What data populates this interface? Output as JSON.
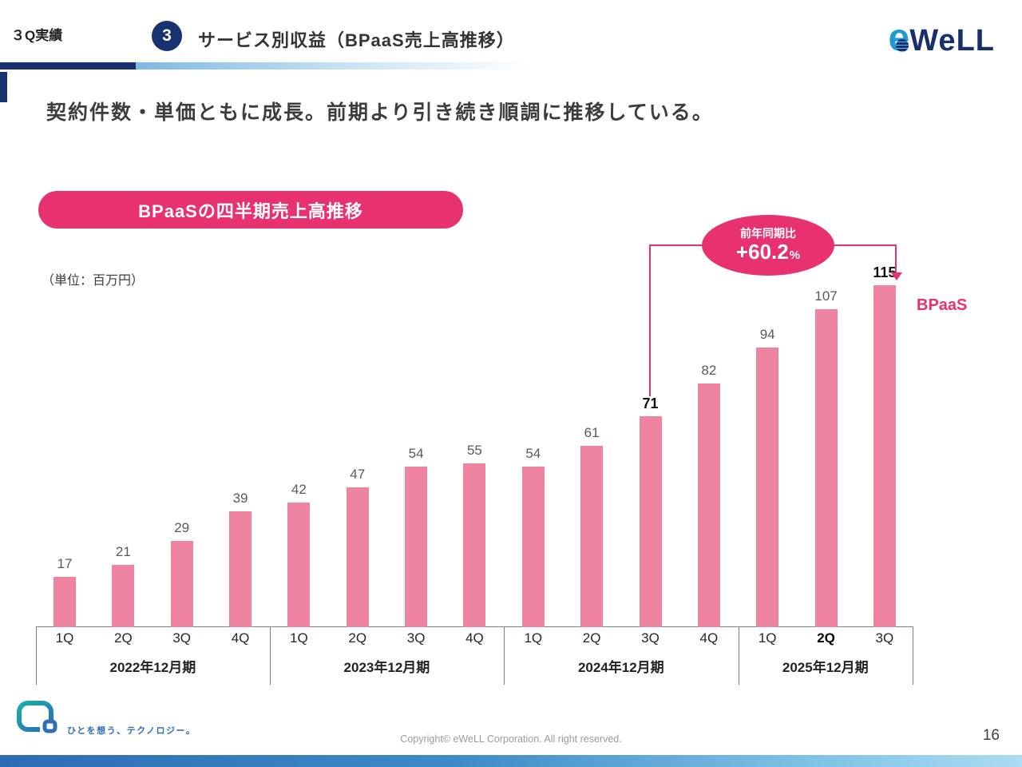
{
  "header": {
    "tag": "３Q実績",
    "section_number": "3",
    "title": "サービス別収益（BPaaS売上高推移）",
    "logo_text_e": "e",
    "logo_text_well": "WeLL"
  },
  "subtitle": "契約件数・単価ともに成長。前期より引き続き順調に推移している。",
  "chart_header": {
    "pill_title": "BPaaSの四半期売上高推移",
    "unit_label": "（単位：百万円）",
    "series_label": "BPaaS"
  },
  "callout": {
    "label": "前年同期比",
    "value": "+60.2",
    "suffix": "%"
  },
  "chart_data": {
    "type": "bar",
    "title": "BPaaSの四半期売上高推移",
    "unit": "百万円",
    "ylim": [
      0,
      120
    ],
    "grid": false,
    "legend": "none",
    "bar_color": "#ee84a2",
    "accent_color": "#e8316f",
    "categories": [
      "1Q",
      "2Q",
      "3Q",
      "4Q",
      "1Q",
      "2Q",
      "3Q",
      "4Q",
      "1Q",
      "2Q",
      "3Q",
      "4Q",
      "1Q",
      "2Q",
      "3Q"
    ],
    "values": [
      17,
      21,
      29,
      39,
      42,
      47,
      54,
      55,
      54,
      61,
      71,
      82,
      94,
      107,
      115
    ],
    "groups": [
      {
        "label": "2022年12月期",
        "count": 4
      },
      {
        "label": "2023年12月期",
        "count": 4
      },
      {
        "label": "2024年12月期",
        "count": 4
      },
      {
        "label": "2025年12月期",
        "count": 3
      }
    ],
    "emphasized_value_indices": [
      10,
      14
    ],
    "emphasized_category_index": 13,
    "yoy_annotation": {
      "label": "前年同期比",
      "value": "+60.2%",
      "from_index": 10,
      "to_index": 14
    }
  },
  "footer": {
    "tagline": "ひとを想う、テクノロジー。",
    "copyright": "Copyright© eWeLL Corporation. All right reserved.",
    "page_number": "16"
  }
}
